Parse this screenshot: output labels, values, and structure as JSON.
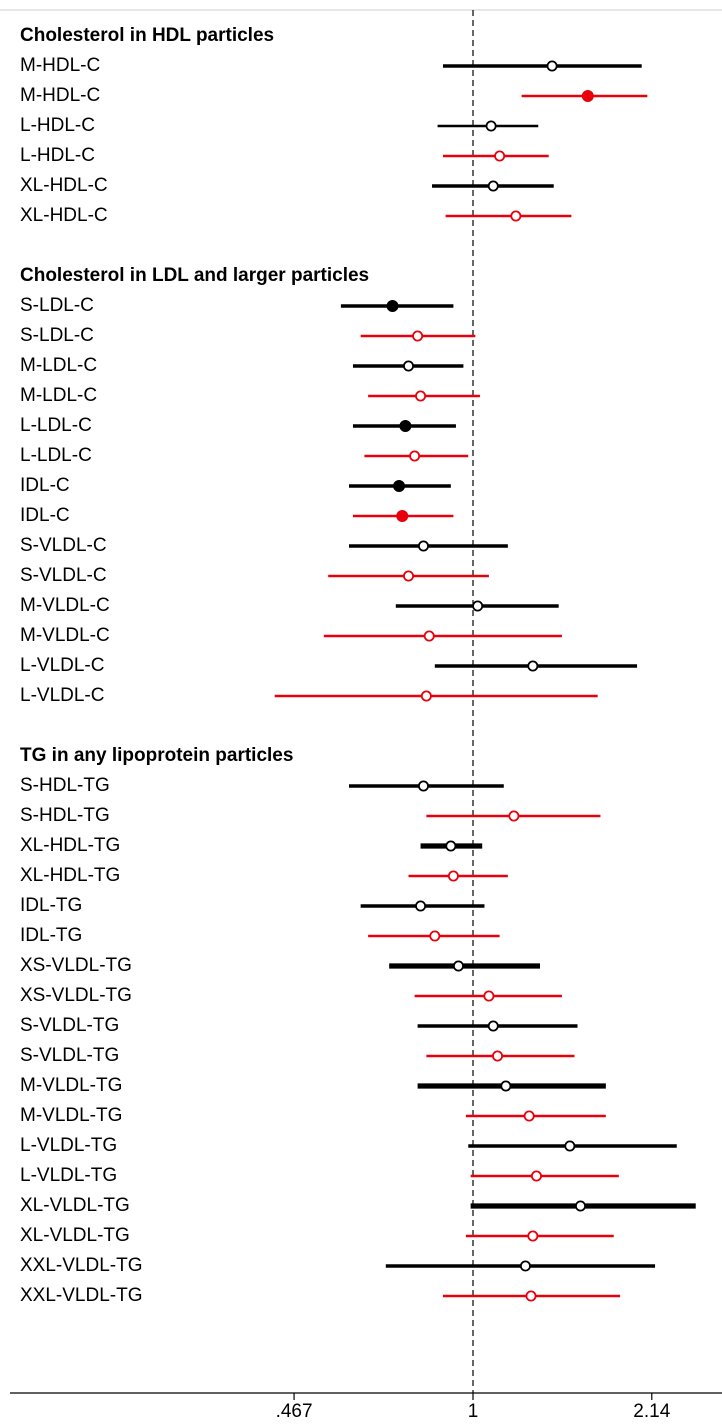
{
  "chart_data": {
    "type": "forest",
    "title": "",
    "xlabel": "",
    "ylabel": "",
    "x_scale": "log",
    "xlim": [
      0.2,
      3.0
    ],
    "reference_line": 1,
    "grid": false,
    "legend": "none",
    "x_ticks": [
      {
        "value": 0.467,
        "label": ".467"
      },
      {
        "value": 1,
        "label": "1"
      },
      {
        "value": 2.14,
        "label": "2.14"
      }
    ],
    "colors": {
      "black": "#000000",
      "red": "#e8000b"
    },
    "sections": [
      {
        "title": "Cholesterol in HDL particles",
        "rows": [
          {
            "label": "M-HDL-C",
            "est": 1.4,
            "lo": 0.88,
            "hi": 2.05,
            "color": "black",
            "filled": false,
            "weight": "thick"
          },
          {
            "label": "M-HDL-C",
            "est": 1.63,
            "lo": 1.23,
            "hi": 2.1,
            "color": "red",
            "filled": true,
            "weight": "thin"
          },
          {
            "label": "L-HDL-C",
            "est": 1.08,
            "lo": 0.86,
            "hi": 1.32,
            "color": "black",
            "filled": false,
            "weight": "thin"
          },
          {
            "label": "L-HDL-C",
            "est": 1.12,
            "lo": 0.88,
            "hi": 1.38,
            "color": "red",
            "filled": false,
            "weight": "thin"
          },
          {
            "label": "XL-HDL-C",
            "est": 1.09,
            "lo": 0.84,
            "hi": 1.41,
            "color": "black",
            "filled": false,
            "weight": "thick"
          },
          {
            "label": "XL-HDL-C",
            "est": 1.2,
            "lo": 0.89,
            "hi": 1.52,
            "color": "red",
            "filled": false,
            "weight": "thin"
          }
        ]
      },
      {
        "title": "Cholesterol in LDL and larger particles",
        "rows": [
          {
            "label": "S-LDL-C",
            "est": 0.71,
            "lo": 0.57,
            "hi": 0.92,
            "color": "black",
            "filled": true,
            "weight": "thick"
          },
          {
            "label": "S-LDL-C",
            "est": 0.79,
            "lo": 0.62,
            "hi": 1.01,
            "color": "red",
            "filled": false,
            "weight": "thin"
          },
          {
            "label": "M-LDL-C",
            "est": 0.76,
            "lo": 0.6,
            "hi": 0.96,
            "color": "black",
            "filled": false,
            "weight": "thick"
          },
          {
            "label": "M-LDL-C",
            "est": 0.8,
            "lo": 0.64,
            "hi": 1.03,
            "color": "red",
            "filled": false,
            "weight": "thin"
          },
          {
            "label": "L-LDL-C",
            "est": 0.75,
            "lo": 0.6,
            "hi": 0.93,
            "color": "black",
            "filled": true,
            "weight": "thick"
          },
          {
            "label": "L-LDL-C",
            "est": 0.78,
            "lo": 0.63,
            "hi": 0.98,
            "color": "red",
            "filled": false,
            "weight": "thin"
          },
          {
            "label": "IDL-C",
            "est": 0.73,
            "lo": 0.59,
            "hi": 0.91,
            "color": "black",
            "filled": true,
            "weight": "thick"
          },
          {
            "label": "IDL-C",
            "est": 0.74,
            "lo": 0.6,
            "hi": 0.92,
            "color": "red",
            "filled": true,
            "weight": "thin"
          },
          {
            "label": "S-VLDL-C",
            "est": 0.81,
            "lo": 0.59,
            "hi": 1.16,
            "color": "black",
            "filled": false,
            "weight": "thick"
          },
          {
            "label": "S-VLDL-C",
            "est": 0.76,
            "lo": 0.54,
            "hi": 1.07,
            "color": "red",
            "filled": false,
            "weight": "thin"
          },
          {
            "label": "M-VLDL-C",
            "est": 1.02,
            "lo": 0.72,
            "hi": 1.44,
            "color": "black",
            "filled": false,
            "weight": "thick"
          },
          {
            "label": "M-VLDL-C",
            "est": 0.83,
            "lo": 0.53,
            "hi": 1.46,
            "color": "red",
            "filled": false,
            "weight": "thin"
          },
          {
            "label": "L-VLDL-C",
            "est": 1.29,
            "lo": 0.85,
            "hi": 2.01,
            "color": "black",
            "filled": false,
            "weight": "thick"
          },
          {
            "label": "L-VLDL-C",
            "est": 0.82,
            "lo": 0.43,
            "hi": 1.7,
            "color": "red",
            "filled": false,
            "weight": "thin"
          }
        ]
      },
      {
        "title": "TG in any lipoprotein particles",
        "rows": [
          {
            "label": "S-HDL-TG",
            "est": 0.81,
            "lo": 0.59,
            "hi": 1.14,
            "color": "black",
            "filled": false,
            "weight": "thick"
          },
          {
            "label": "S-HDL-TG",
            "est": 1.19,
            "lo": 0.82,
            "hi": 1.72,
            "color": "red",
            "filled": false,
            "weight": "thin"
          },
          {
            "label": "XL-HDL-TG",
            "est": 0.91,
            "lo": 0.8,
            "hi": 1.04,
            "color": "black",
            "filled": false,
            "weight": "heavy"
          },
          {
            "label": "XL-HDL-TG",
            "est": 0.92,
            "lo": 0.76,
            "hi": 1.16,
            "color": "red",
            "filled": false,
            "weight": "thin"
          },
          {
            "label": "IDL-TG",
            "est": 0.8,
            "lo": 0.62,
            "hi": 1.05,
            "color": "black",
            "filled": false,
            "weight": "thick"
          },
          {
            "label": "IDL-TG",
            "est": 0.85,
            "lo": 0.64,
            "hi": 1.12,
            "color": "red",
            "filled": false,
            "weight": "thin"
          },
          {
            "label": "XS-VLDL-TG",
            "est": 0.94,
            "lo": 0.7,
            "hi": 1.33,
            "color": "black",
            "filled": false,
            "weight": "heavy"
          },
          {
            "label": "XS-VLDL-TG",
            "est": 1.07,
            "lo": 0.78,
            "hi": 1.46,
            "color": "red",
            "filled": false,
            "weight": "thin"
          },
          {
            "label": "S-VLDL-TG",
            "est": 1.09,
            "lo": 0.79,
            "hi": 1.56,
            "color": "black",
            "filled": false,
            "weight": "thick"
          },
          {
            "label": "S-VLDL-TG",
            "est": 1.11,
            "lo": 0.82,
            "hi": 1.54,
            "color": "red",
            "filled": false,
            "weight": "thin"
          },
          {
            "label": "M-VLDL-TG",
            "est": 1.15,
            "lo": 0.79,
            "hi": 1.76,
            "color": "black",
            "filled": false,
            "weight": "heavy"
          },
          {
            "label": "M-VLDL-TG",
            "est": 1.27,
            "lo": 0.97,
            "hi": 1.76,
            "color": "red",
            "filled": false,
            "weight": "thin"
          },
          {
            "label": "L-VLDL-TG",
            "est": 1.51,
            "lo": 0.98,
            "hi": 2.38,
            "color": "black",
            "filled": false,
            "weight": "thick"
          },
          {
            "label": "L-VLDL-TG",
            "est": 1.31,
            "lo": 0.99,
            "hi": 1.86,
            "color": "red",
            "filled": false,
            "weight": "thin"
          },
          {
            "label": "XL-VLDL-TG",
            "est": 1.58,
            "lo": 0.99,
            "hi": 2.58,
            "color": "black",
            "filled": false,
            "weight": "heavy"
          },
          {
            "label": "XL-VLDL-TG",
            "est": 1.29,
            "lo": 0.97,
            "hi": 1.82,
            "color": "red",
            "filled": false,
            "weight": "thin"
          },
          {
            "label": "XXL-VLDL-TG",
            "est": 1.25,
            "lo": 0.69,
            "hi": 2.17,
            "color": "black",
            "filled": false,
            "weight": "thick"
          },
          {
            "label": "XXL-VLDL-TG",
            "est": 1.28,
            "lo": 0.88,
            "hi": 1.87,
            "color": "red",
            "filled": false,
            "weight": "thin"
          }
        ]
      }
    ]
  }
}
